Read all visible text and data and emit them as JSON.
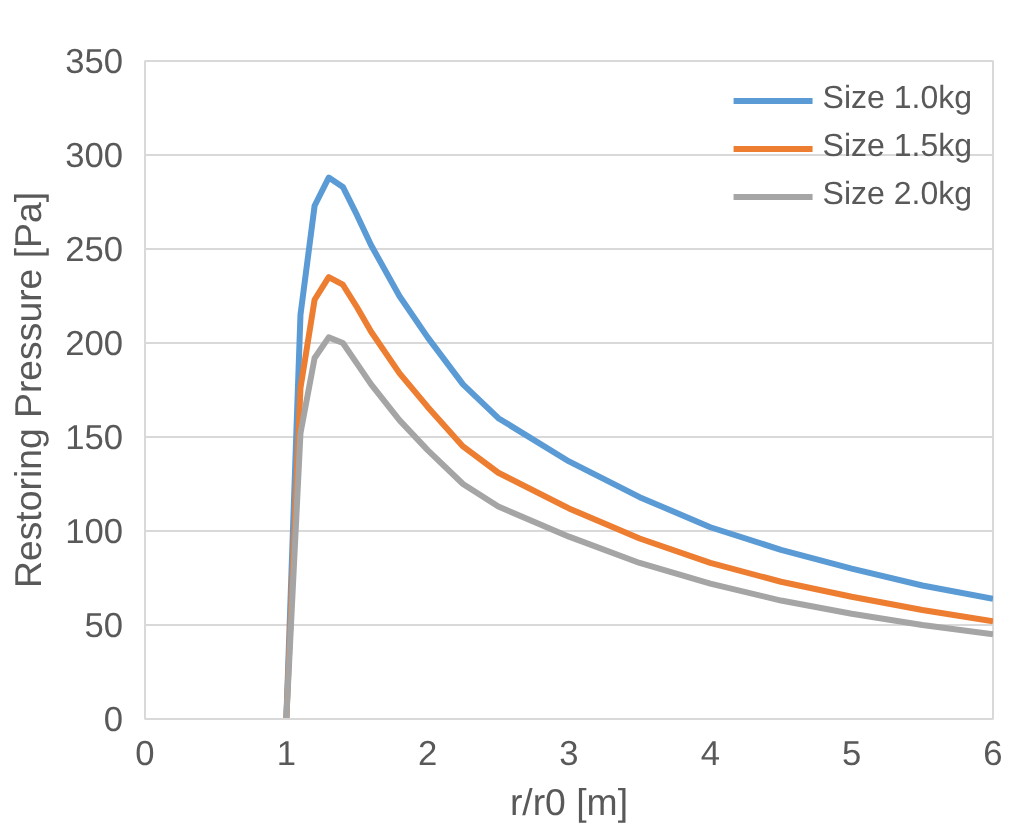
{
  "chart_data": {
    "type": "line",
    "xlabel": "r/r0 [m]",
    "ylabel": "Restoring Pressure [Pa]",
    "x": [
      1,
      1.1,
      1.2,
      1.3,
      1.4,
      1.5,
      1.6,
      1.8,
      2,
      2.25,
      2.5,
      3,
      3.5,
      4,
      4.5,
      5,
      5.5,
      6
    ],
    "series": [
      {
        "name": "Size 1.0kg",
        "color": "#5b9bd5",
        "values": [
          0,
          215,
          273,
          288,
          283,
          268,
          252,
          225,
          203,
          178,
          160,
          137,
          118,
          102,
          90,
          80,
          71,
          64
        ]
      },
      {
        "name": "Size 1.5kg",
        "color": "#ed7d31",
        "values": [
          0,
          176,
          223,
          235,
          231,
          219,
          206,
          184,
          166,
          145,
          131,
          112,
          96,
          83,
          73,
          65,
          58,
          52
        ]
      },
      {
        "name": "Size 2.0kg",
        "color": "#a5a5a5",
        "values": [
          0,
          152,
          192,
          203,
          200,
          189,
          178,
          159,
          143,
          125,
          113,
          97,
          83,
          72,
          63,
          56,
          50,
          45
        ]
      }
    ],
    "xlim": [
      0,
      6
    ],
    "xticks": [
      0,
      1,
      2,
      3,
      4,
      5,
      6
    ],
    "ylim": [
      0,
      350
    ],
    "yticks": [
      0,
      50,
      100,
      150,
      200,
      250,
      300,
      350
    ],
    "grid": "y",
    "legend": "top right",
    "marker": "none",
    "line_style": "solid"
  }
}
